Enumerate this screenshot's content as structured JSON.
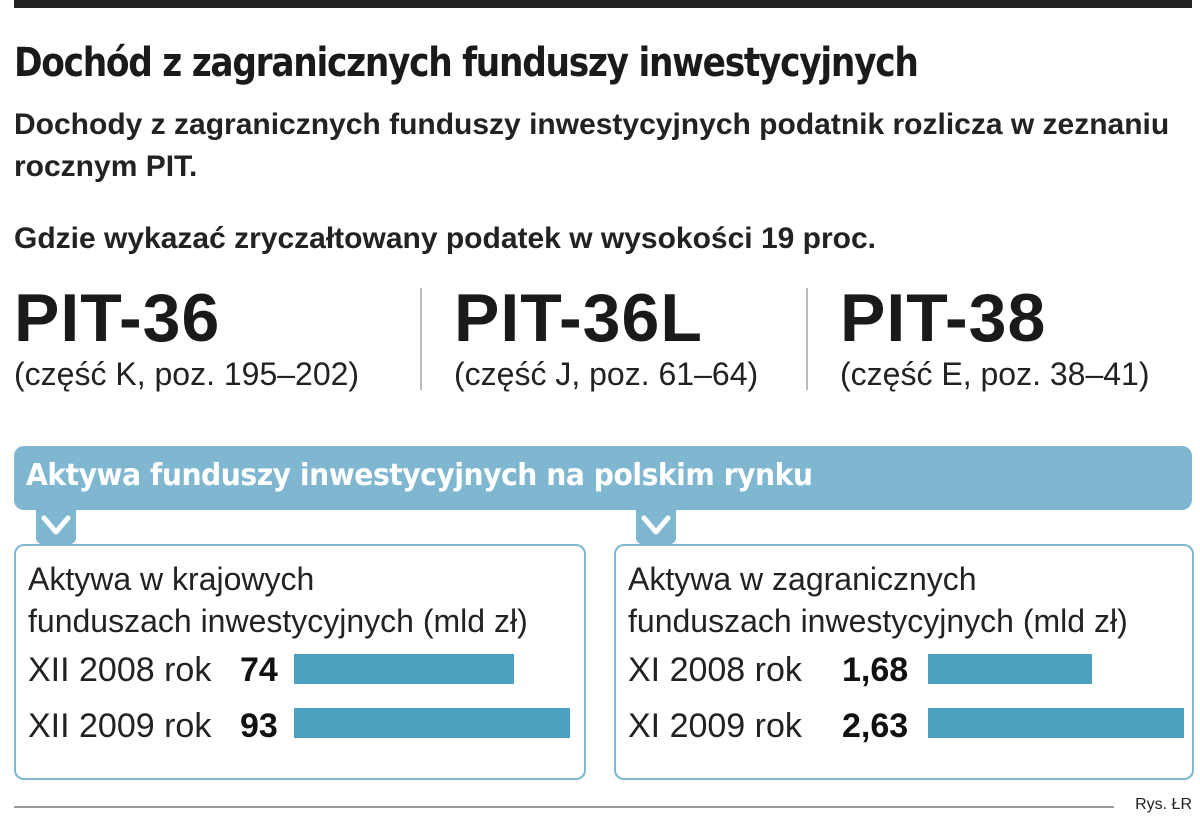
{
  "header": {
    "title": "Dochód z zagranicznych funduszy inwestycyjnych",
    "subtitle": "Dochody z zagranicznych funduszy inwestycyjnych podatnik rozlicza w zeznaniu rocznym PIT.",
    "question": "Gdzie wykazać zryczałtowany podatek w wysokości 19 proc."
  },
  "forms": [
    {
      "name": "PIT-36",
      "detail": "(część K, poz. 195–202)"
    },
    {
      "name": "PIT-36L",
      "detail": "(część J, poz. 61–64)"
    },
    {
      "name": "PIT-38",
      "detail": "(część E, poz. 38–41)"
    }
  ],
  "banner": {
    "title": "Aktywa funduszy inwestycyjnych na polskim rynku"
  },
  "chart_data": [
    {
      "type": "bar",
      "title_line1": "Aktywa w krajowych",
      "title_line2": "funduszach inwestycyjnych (mld zł)",
      "categories": [
        "XII 2008 rok",
        "XII 2009 rok"
      ],
      "values": [
        74,
        93
      ],
      "value_labels": [
        "74",
        "93"
      ]
    },
    {
      "type": "bar",
      "title_line1": "Aktywa w zagranicznych",
      "title_line2": "funduszach inwestycyjnych (mld zł)",
      "categories": [
        "XI 2008 rok",
        "XI 2009 rok"
      ],
      "values": [
        1.68,
        2.63
      ],
      "value_labels": [
        "1,68",
        "2,63"
      ]
    }
  ],
  "footer": {
    "credit": "Rys. ŁR"
  },
  "colors": {
    "accent": "#7fb7d1",
    "bar": "#4aa1c0",
    "text": "#1a1a1a"
  }
}
